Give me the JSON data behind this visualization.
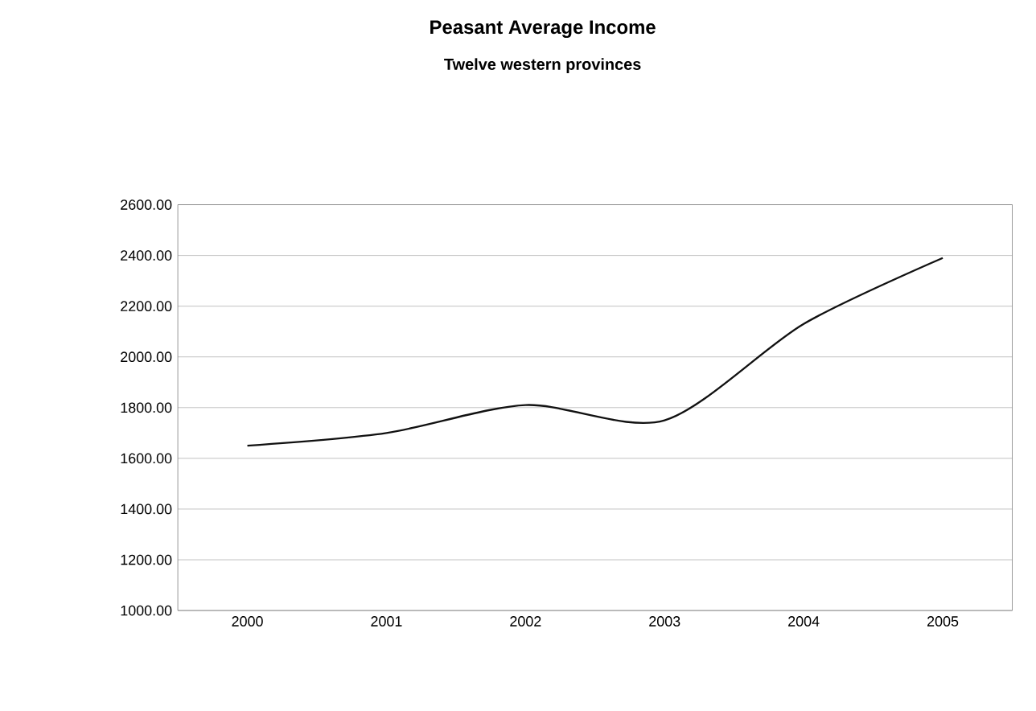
{
  "chart_data": {
    "type": "line",
    "title": "Peasant Average Income",
    "subtitle": "Twelve western provinces",
    "categories": [
      "2000",
      "2001",
      "2002",
      "2003",
      "2004",
      "2005"
    ],
    "series": [
      {
        "color": "#111111",
        "values": [
          1650,
          1700,
          1810,
          1750,
          2130,
          2390
        ]
      }
    ],
    "ylim": [
      1000,
      2600
    ],
    "yticks": [
      {
        "value": 1000,
        "label": "1000.00"
      },
      {
        "value": 1200,
        "label": "1200.00"
      },
      {
        "value": 1400,
        "label": "1400.00"
      },
      {
        "value": 1600,
        "label": "1600.00"
      },
      {
        "value": 1800,
        "label": "1800.00"
      },
      {
        "value": 2000,
        "label": "2000.00"
      },
      {
        "value": 2200,
        "label": "2200.00"
      },
      {
        "value": 2400,
        "label": "2400.00"
      },
      {
        "value": 2600,
        "label": "2600.00"
      }
    ],
    "grid": "y",
    "marker": "none",
    "line_style": "solid"
  }
}
